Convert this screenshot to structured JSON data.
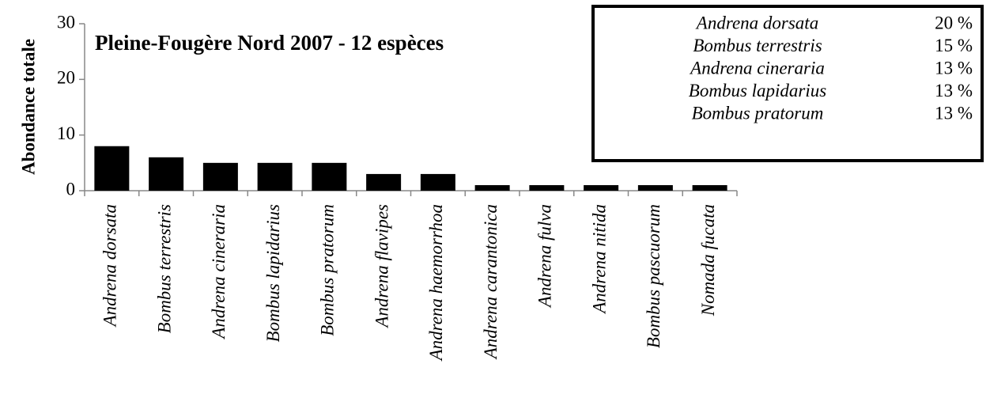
{
  "chart_data": {
    "type": "bar",
    "title": "Pleine-Fougère Nord 2007 - 12 espèces",
    "y_label": "Abondance totale",
    "categories": [
      "Andrena dorsata",
      "Bombus terrestris",
      "Andrena cineraria",
      "Bombus lapidarius",
      "Bombus pratorum",
      "Andrena flavipes",
      "Andrena haemorrhoa",
      "Andrena carantonica",
      "Andrena fulva",
      "Andrena nitida",
      "Bombus pascuorum",
      "Nomada fucata"
    ],
    "values": [
      8,
      6,
      5,
      5,
      5,
      3,
      3,
      1,
      1,
      1,
      1,
      1
    ],
    "color": "#000000",
    "ylim": [
      0,
      30
    ],
    "yticks": [
      0,
      10,
      20,
      30
    ],
    "grid": false,
    "annotation_table": {
      "rows": [
        [
          "Andrena dorsata",
          "20 %"
        ],
        [
          "Bombus terrestris",
          "15 %"
        ],
        [
          "Andrena cineraria",
          "13 %"
        ],
        [
          "Bombus lapidarius",
          "13 %"
        ],
        [
          "Bombus pratorum",
          "13 %"
        ]
      ]
    }
  }
}
